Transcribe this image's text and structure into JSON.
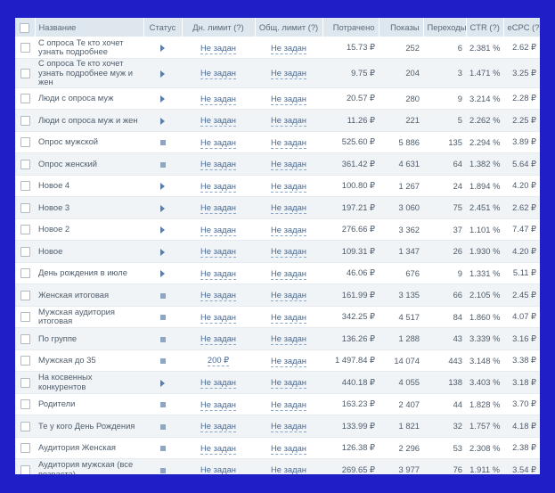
{
  "headers": {
    "name": "Название",
    "status": "Статус",
    "daily_limit": "Дн. лимит (?)",
    "total_limit": "Общ. лимит (?)",
    "spent": "Потрачено",
    "impressions": "Показы",
    "clicks": "Переходы",
    "ctr": "CTR (?)",
    "ecpc": "eCPC (?)"
  },
  "rows": [
    {
      "name": "С опроса Те кто хочет узнать подробнее",
      "status": "play",
      "daily_limit": "Не задан",
      "total_limit": "Не задан",
      "spent": "15.73 ₽",
      "impressions": "252",
      "clicks": "6",
      "ctr": "2.381 %",
      "ecpc": "2.62 ₽"
    },
    {
      "name": "С опроса Те кто хочет узнать подробнее муж и жен",
      "status": "play",
      "daily_limit": "Не задан",
      "total_limit": "Не задан",
      "spent": "9.75 ₽",
      "impressions": "204",
      "clicks": "3",
      "ctr": "1.471 %",
      "ecpc": "3.25 ₽"
    },
    {
      "name": "Люди с опроса муж",
      "status": "play",
      "daily_limit": "Не задан",
      "total_limit": "Не задан",
      "spent": "20.57 ₽",
      "impressions": "280",
      "clicks": "9",
      "ctr": "3.214 %",
      "ecpc": "2.28 ₽"
    },
    {
      "name": "Люди с опроса муж и жен",
      "status": "play",
      "daily_limit": "Не задан",
      "total_limit": "Не задан",
      "spent": "11.26 ₽",
      "impressions": "221",
      "clicks": "5",
      "ctr": "2.262 %",
      "ecpc": "2.25 ₽"
    },
    {
      "name": "Опрос мужской",
      "status": "pause",
      "daily_limit": "Не задан",
      "total_limit": "Не задан",
      "spent": "525.60 ₽",
      "impressions": "5 886",
      "clicks": "135",
      "ctr": "2.294 %",
      "ecpc": "3.89 ₽"
    },
    {
      "name": "Опрос женский",
      "status": "pause",
      "daily_limit": "Не задан",
      "total_limit": "Не задан",
      "spent": "361.42 ₽",
      "impressions": "4 631",
      "clicks": "64",
      "ctr": "1.382 %",
      "ecpc": "5.64 ₽"
    },
    {
      "name": "Новое 4",
      "status": "play",
      "daily_limit": "Не задан",
      "total_limit": "Не задан",
      "spent": "100.80 ₽",
      "impressions": "1 267",
      "clicks": "24",
      "ctr": "1.894 %",
      "ecpc": "4.20 ₽"
    },
    {
      "name": "Новое 3",
      "status": "play",
      "daily_limit": "Не задан",
      "total_limit": "Не задан",
      "spent": "197.21 ₽",
      "impressions": "3 060",
      "clicks": "75",
      "ctr": "2.451 %",
      "ecpc": "2.62 ₽"
    },
    {
      "name": "Новое 2",
      "status": "play",
      "daily_limit": "Не задан",
      "total_limit": "Не задан",
      "spent": "276.66 ₽",
      "impressions": "3 362",
      "clicks": "37",
      "ctr": "1.101 %",
      "ecpc": "7.47 ₽"
    },
    {
      "name": "Новое",
      "status": "play",
      "daily_limit": "Не задан",
      "total_limit": "Не задан",
      "spent": "109.31 ₽",
      "impressions": "1 347",
      "clicks": "26",
      "ctr": "1.930 %",
      "ecpc": "4.20 ₽"
    },
    {
      "name": "День рождения в июле",
      "status": "play",
      "daily_limit": "Не задан",
      "total_limit": "Не задан",
      "spent": "46.06 ₽",
      "impressions": "676",
      "clicks": "9",
      "ctr": "1.331 %",
      "ecpc": "5.11 ₽"
    },
    {
      "name": "Женская итоговая",
      "status": "pause",
      "daily_limit": "Не задан",
      "total_limit": "Не задан",
      "spent": "161.99 ₽",
      "impressions": "3 135",
      "clicks": "66",
      "ctr": "2.105 %",
      "ecpc": "2.45 ₽"
    },
    {
      "name": "Мужская аудитория итоговая",
      "status": "pause",
      "daily_limit": "Не задан",
      "total_limit": "Не задан",
      "spent": "342.25 ₽",
      "impressions": "4 517",
      "clicks": "84",
      "ctr": "1.860 %",
      "ecpc": "4.07 ₽"
    },
    {
      "name": "По группе",
      "status": "pause",
      "daily_limit": "Не задан",
      "total_limit": "Не задан",
      "spent": "136.26 ₽",
      "impressions": "1 288",
      "clicks": "43",
      "ctr": "3.339 %",
      "ecpc": "3.16 ₽"
    },
    {
      "name": "Мужская до 35",
      "status": "pause",
      "daily_limit": "200 ₽",
      "total_limit": "Не задан",
      "spent": "1 497.84 ₽",
      "impressions": "14 074",
      "clicks": "443",
      "ctr": "3.148 %",
      "ecpc": "3.38 ₽"
    },
    {
      "name": "На косвенных конкурентов",
      "status": "play",
      "daily_limit": "Не задан",
      "total_limit": "Не задан",
      "spent": "440.18 ₽",
      "impressions": "4 055",
      "clicks": "138",
      "ctr": "3.403 %",
      "ecpc": "3.18 ₽"
    },
    {
      "name": "Родители",
      "status": "pause",
      "daily_limit": "Не задан",
      "total_limit": "Не задан",
      "spent": "163.23 ₽",
      "impressions": "2 407",
      "clicks": "44",
      "ctr": "1.828 %",
      "ecpc": "3.70 ₽"
    },
    {
      "name": "Те у кого День Рождения",
      "status": "pause",
      "daily_limit": "Не задан",
      "total_limit": "Не задан",
      "spent": "133.99 ₽",
      "impressions": "1 821",
      "clicks": "32",
      "ctr": "1.757 %",
      "ecpc": "4.18 ₽"
    },
    {
      "name": "Аудитория Женская",
      "status": "pause",
      "daily_limit": "Не задан",
      "total_limit": "Не задан",
      "spent": "126.38 ₽",
      "impressions": "2 296",
      "clicks": "53",
      "ctr": "2.308 %",
      "ecpc": "2.38 ₽"
    },
    {
      "name": "Аудитория мужская (все возраста)",
      "status": "pause",
      "daily_limit": "Не задан",
      "total_limit": "Не задан",
      "spent": "269.65 ₽",
      "impressions": "3 977",
      "clicks": "76",
      "ctr": "1.911 %",
      "ecpc": "3.54 ₽"
    }
  ]
}
